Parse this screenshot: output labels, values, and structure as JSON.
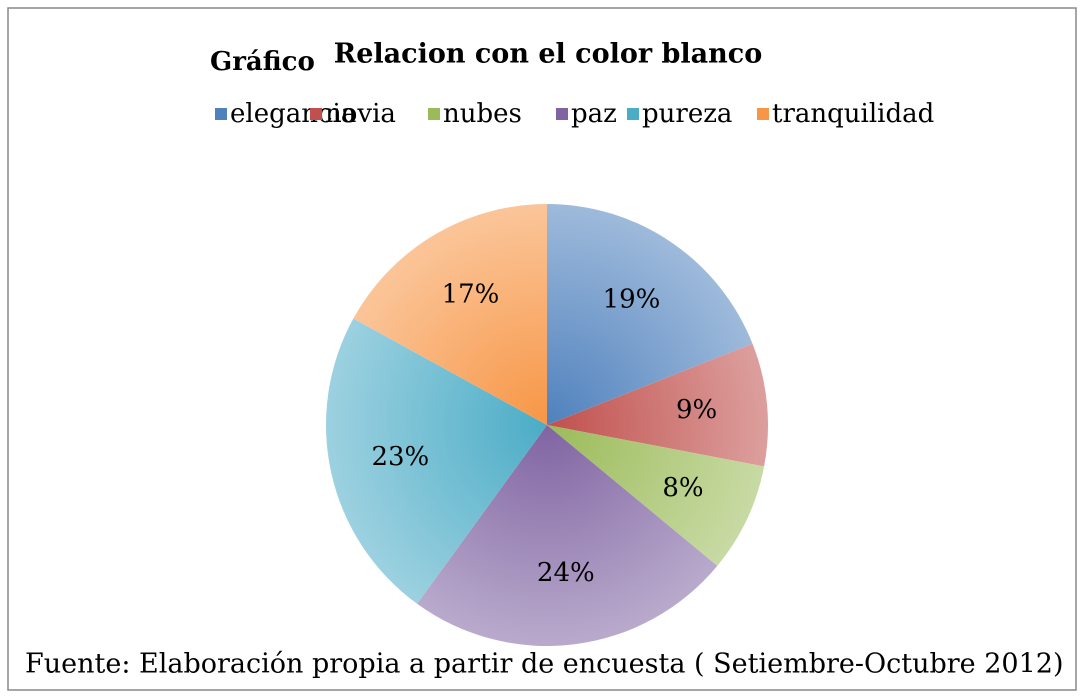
{
  "chart_data": {
    "type": "pie",
    "title": "Relacion con el color blanco",
    "annotations": [
      "Gráfico",
      "Fuente: Elaboración propia a partir de encuesta ( Setiembre-Octubre 2012)"
    ],
    "categories": [
      "elegancia",
      "novia",
      "nubes",
      "paz",
      "pureza",
      "tranquilidad"
    ],
    "values": [
      19,
      9,
      8,
      24,
      23,
      17
    ],
    "value_labels": [
      "19%",
      "9%",
      "8%",
      "24%",
      "23%",
      "17%"
    ],
    "colors": [
      "#4f81bd",
      "#c0504d",
      "#9bbb59",
      "#8064a2",
      "#4bacc6",
      "#f79646"
    ],
    "legend": "top"
  }
}
